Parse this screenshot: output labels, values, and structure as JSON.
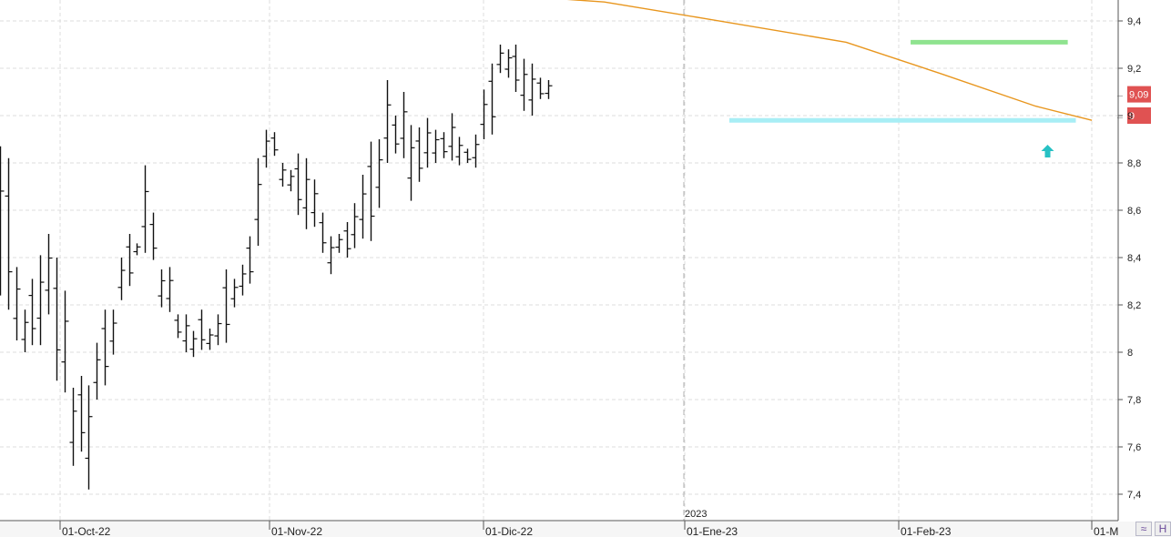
{
  "chart_data": {
    "type": "ohlc",
    "ylim": [
      7.32,
      9.52
    ],
    "yticks": [
      "9,4",
      "9,2",
      "9",
      "8,8",
      "8,6",
      "8,4",
      "8,2",
      "8",
      "7,8",
      "7,6",
      "7,4"
    ],
    "xticks": [
      "01-Oct-22",
      "01-Nov-22",
      "01-Dic-22",
      "01-Ene-23",
      "01-Feb-23",
      "01-M"
    ],
    "year_marker": "2023",
    "last_price_label": "9,09",
    "level_label": "9",
    "moving_average": {
      "color": "#e8961e",
      "points": [
        [
          0.0,
          9.66
        ],
        [
          150,
          9.48
        ],
        [
          175,
          9.41
        ],
        [
          210,
          9.31
        ],
        [
          233,
          9.18
        ],
        [
          257,
          9.04
        ],
        [
          271,
          8.98
        ]
      ]
    },
    "resistance": {
      "value": 9.31,
      "x_from": 226,
      "x_to": 265,
      "color": "#8fe38f"
    },
    "support": {
      "value": 8.98,
      "x_from": 181,
      "x_to": 267,
      "color": "#a8eef5"
    },
    "signal_arrow": {
      "x": 260,
      "value": 8.85,
      "color": "#27c1c4"
    },
    "bars": [
      [
        0,
        8.87,
        8.24
      ],
      [
        2,
        8.82,
        8.18
      ],
      [
        4,
        8.36,
        8.05
      ],
      [
        6,
        8.18,
        8.0
      ],
      [
        8,
        8.31,
        8.03
      ],
      [
        10,
        8.41,
        8.03
      ],
      [
        12,
        8.5,
        8.16
      ],
      [
        14,
        8.4,
        7.88
      ],
      [
        16,
        8.26,
        7.83
      ],
      [
        18,
        7.85,
        7.52
      ],
      [
        20,
        7.9,
        7.58
      ],
      [
        22,
        7.86,
        7.42
      ],
      [
        24,
        8.04,
        7.8
      ],
      [
        26,
        8.18,
        7.86
      ],
      [
        28,
        8.18,
        7.99
      ],
      [
        30,
        8.4,
        8.22
      ],
      [
        32,
        8.5,
        8.28
      ],
      [
        34,
        8.46,
        8.41
      ],
      [
        36,
        8.79,
        8.42
      ],
      [
        38,
        8.59,
        8.39
      ],
      [
        40,
        8.35,
        8.19
      ],
      [
        42,
        8.36,
        8.17
      ],
      [
        44,
        8.16,
        8.06
      ],
      [
        46,
        8.16,
        8.0
      ],
      [
        48,
        8.09,
        7.98
      ],
      [
        50,
        8.18,
        8.01
      ],
      [
        52,
        8.1,
        8.01
      ],
      [
        54,
        8.16,
        8.03
      ],
      [
        56,
        8.35,
        8.04
      ],
      [
        58,
        8.31,
        8.19
      ],
      [
        60,
        8.37,
        8.24
      ],
      [
        62,
        8.49,
        8.29
      ],
      [
        64,
        8.82,
        8.45
      ],
      [
        66,
        8.94,
        8.78
      ],
      [
        68,
        8.93,
        8.83
      ],
      [
        70,
        8.8,
        8.7
      ],
      [
        72,
        8.77,
        8.68
      ],
      [
        74,
        8.84,
        8.58
      ],
      [
        76,
        8.82,
        8.52
      ],
      [
        78,
        8.73,
        8.53
      ],
      [
        80,
        8.59,
        8.42
      ],
      [
        82,
        8.49,
        8.33
      ],
      [
        84,
        8.5,
        8.42
      ],
      [
        86,
        8.55,
        8.4
      ],
      [
        88,
        8.63,
        8.44
      ],
      [
        90,
        8.75,
        8.48
      ],
      [
        92,
        8.89,
        8.47
      ],
      [
        94,
        8.9,
        8.61
      ],
      [
        96,
        9.15,
        8.8
      ],
      [
        98,
        9.0,
        8.84
      ],
      [
        100,
        9.1,
        8.82
      ],
      [
        102,
        8.96,
        8.64
      ],
      [
        104,
        8.95,
        8.72
      ],
      [
        106,
        8.99,
        8.78
      ],
      [
        108,
        8.94,
        8.8
      ],
      [
        110,
        8.93,
        8.82
      ],
      [
        112,
        9.01,
        8.81
      ],
      [
        114,
        8.91,
        8.79
      ],
      [
        116,
        8.86,
        8.8
      ],
      [
        118,
        8.92,
        8.78
      ],
      [
        120,
        9.11,
        8.9
      ],
      [
        122,
        9.22,
        8.92
      ],
      [
        124,
        9.3,
        9.18
      ],
      [
        126,
        9.28,
        9.16
      ],
      [
        128,
        9.3,
        9.1
      ],
      [
        130,
        9.24,
        9.02
      ],
      [
        132,
        9.22,
        9.0
      ],
      [
        134,
        9.16,
        9.07
      ],
      [
        136,
        9.15,
        9.07
      ]
    ]
  },
  "icons": {
    "fit_icon": "zigzag-icon",
    "corner_icon": "h-icon"
  }
}
